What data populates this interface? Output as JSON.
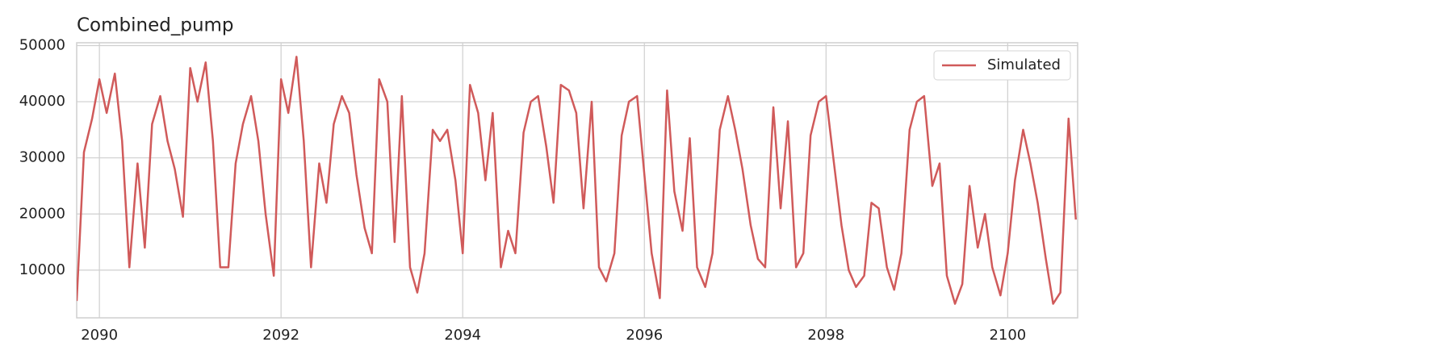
{
  "chart_data": {
    "type": "line",
    "title": "Combined_pump",
    "x": [
      2089.75,
      2089.83,
      2089.92,
      2090,
      2090.08,
      2090.17,
      2090.25,
      2090.33,
      2090.42,
      2090.5,
      2090.58,
      2090.67,
      2090.75,
      2090.83,
      2090.92,
      2091,
      2091.08,
      2091.17,
      2091.25,
      2091.33,
      2091.42,
      2091.5,
      2091.58,
      2091.67,
      2091.75,
      2091.83,
      2091.92,
      2092,
      2092.08,
      2092.17,
      2092.25,
      2092.33,
      2092.42,
      2092.5,
      2092.58,
      2092.67,
      2092.75,
      2092.83,
      2092.92,
      2093,
      2093.08,
      2093.17,
      2093.25,
      2093.33,
      2093.42,
      2093.5,
      2093.58,
      2093.67,
      2093.75,
      2093.83,
      2093.92,
      2094,
      2094.08,
      2094.17,
      2094.25,
      2094.33,
      2094.42,
      2094.5,
      2094.58,
      2094.67,
      2094.75,
      2094.83,
      2094.92,
      2095,
      2095.08,
      2095.17,
      2095.25,
      2095.33,
      2095.42,
      2095.5,
      2095.58,
      2095.67,
      2095.75,
      2095.83,
      2095.92,
      2096,
      2096.08,
      2096.17,
      2096.25,
      2096.33,
      2096.42,
      2096.5,
      2096.58,
      2096.67,
      2096.75,
      2096.83,
      2096.92,
      2097,
      2097.08,
      2097.17,
      2097.25,
      2097.33,
      2097.42,
      2097.5,
      2097.58,
      2097.67,
      2097.75,
      2097.83,
      2097.92,
      2098,
      2098.08,
      2098.17,
      2098.25,
      2098.33,
      2098.42,
      2098.5,
      2098.58,
      2098.67,
      2098.75,
      2098.83,
      2098.92,
      2099,
      2099.08,
      2099.17,
      2099.25,
      2099.33,
      2099.42,
      2099.5,
      2099.58,
      2099.67,
      2099.75,
      2099.83,
      2099.92,
      2100,
      2100.08,
      2100.17,
      2100.25,
      2100.33,
      2100.42,
      2100.5,
      2100.58,
      2100.67,
      2100.75
    ],
    "series": [
      {
        "name": "Simulated",
        "color": "#d05a5a",
        "values": [
          4500,
          31000,
          37000,
          44000,
          38000,
          45000,
          33000,
          10500,
          29000,
          14000,
          36000,
          41000,
          33000,
          28000,
          19500,
          46000,
          40000,
          47000,
          33000,
          10500,
          10500,
          29000,
          36000,
          41000,
          33000,
          20000,
          9000,
          44000,
          38000,
          48000,
          33000,
          10500,
          29000,
          22000,
          36000,
          41000,
          38000,
          27000,
          17500,
          13000,
          44000,
          40000,
          15000,
          41000,
          10500,
          6000,
          13000,
          35000,
          33000,
          35000,
          26000,
          13000,
          43000,
          38000,
          26000,
          38000,
          10500,
          17000,
          13000,
          34500,
          40000,
          41000,
          32000,
          22000,
          43000,
          42000,
          38000,
          21000,
          40000,
          10500,
          8000,
          13000,
          34000,
          40000,
          41000,
          27000,
          13000,
          5000,
          42000,
          24000,
          17000,
          33500,
          10500,
          7000,
          13000,
          35000,
          41000,
          35000,
          28000,
          18000,
          12000,
          10500,
          39000,
          21000,
          36500,
          10500,
          13000,
          34000,
          40000,
          41000,
          30000,
          18000,
          10000,
          7000,
          9000,
          22000,
          21000,
          10500,
          6500,
          13000,
          35000,
          40000,
          41000,
          25000,
          29000,
          9000,
          4000,
          7500,
          25000,
          14000,
          20000,
          10500,
          5500,
          13000,
          26000,
          35000,
          29000,
          22000,
          12000,
          4000,
          6000,
          37000,
          19000
        ]
      }
    ],
    "xlim": [
      2089.75,
      2100.77
    ],
    "xticks": [
      2090,
      2092,
      2094,
      2096,
      2098,
      2100
    ],
    "ylim": [
      1500,
      50500
    ],
    "yticks": [
      10000,
      20000,
      30000,
      40000,
      50000
    ],
    "grid": true,
    "legend": "upper right"
  }
}
